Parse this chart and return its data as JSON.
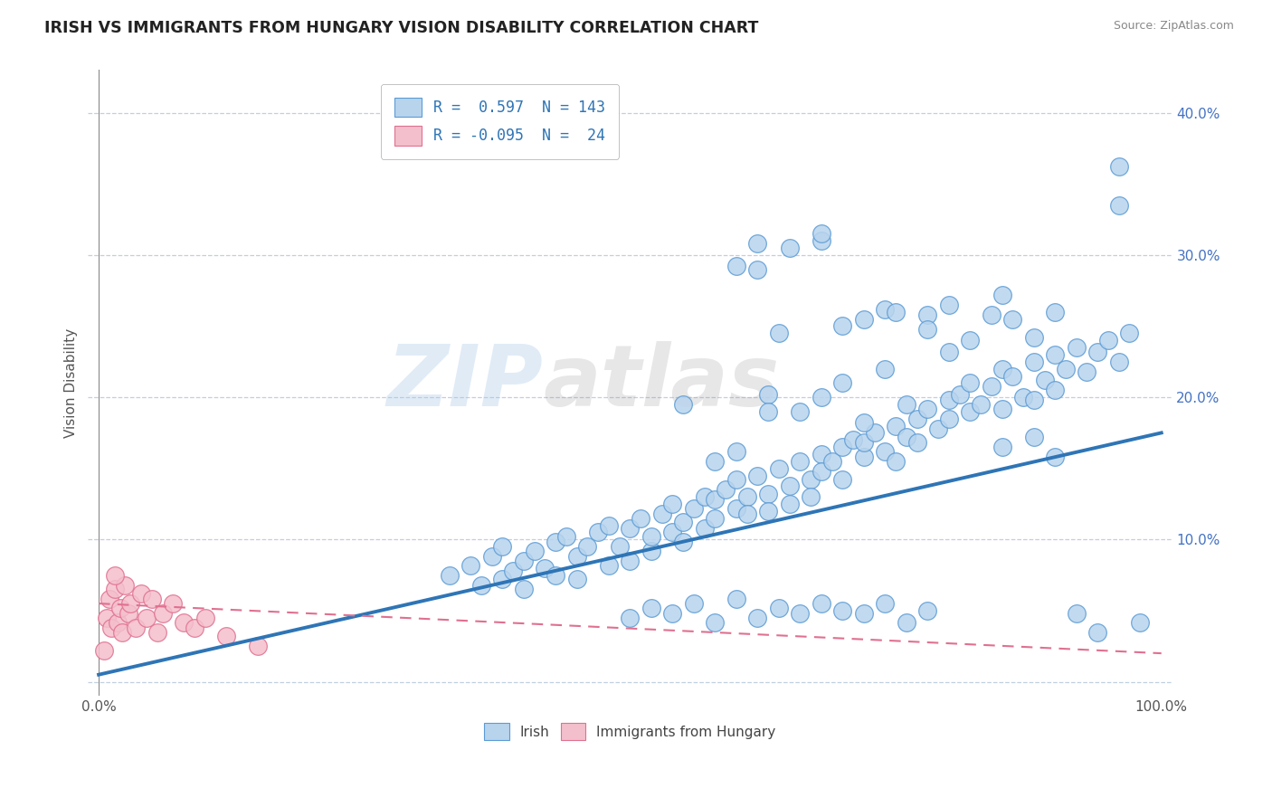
{
  "title": "IRISH VS IMMIGRANTS FROM HUNGARY VISION DISABILITY CORRELATION CHART",
  "source": "Source: ZipAtlas.com",
  "ylabel": "Vision Disability",
  "legend_irish_r": "0.597",
  "legend_irish_n": "143",
  "legend_hungary_r": "-0.095",
  "legend_hungary_n": "24",
  "watermark_zip": "ZIP",
  "watermark_atlas": "atlas",
  "irish_color": "#b8d4ed",
  "irish_edge_color": "#5b9bd5",
  "hungary_color": "#f4bfcc",
  "hungary_edge_color": "#e07090",
  "irish_line_color": "#2e75b6",
  "hungary_line_color": "#e07090",
  "background_color": "#ffffff",
  "grid_color": "#c0cfe0",
  "irish_scatter": [
    [
      33,
      7.5
    ],
    [
      35,
      8.2
    ],
    [
      36,
      6.8
    ],
    [
      37,
      8.8
    ],
    [
      38,
      7.2
    ],
    [
      38,
      9.5
    ],
    [
      39,
      7.8
    ],
    [
      40,
      8.5
    ],
    [
      40,
      6.5
    ],
    [
      41,
      9.2
    ],
    [
      42,
      8.0
    ],
    [
      43,
      9.8
    ],
    [
      43,
      7.5
    ],
    [
      44,
      10.2
    ],
    [
      45,
      8.8
    ],
    [
      45,
      7.2
    ],
    [
      46,
      9.5
    ],
    [
      47,
      10.5
    ],
    [
      48,
      8.2
    ],
    [
      48,
      11.0
    ],
    [
      49,
      9.5
    ],
    [
      50,
      10.8
    ],
    [
      50,
      8.5
    ],
    [
      51,
      11.5
    ],
    [
      52,
      9.2
    ],
    [
      52,
      10.2
    ],
    [
      53,
      11.8
    ],
    [
      54,
      10.5
    ],
    [
      54,
      12.5
    ],
    [
      55,
      11.2
    ],
    [
      55,
      9.8
    ],
    [
      56,
      12.2
    ],
    [
      57,
      10.8
    ],
    [
      57,
      13.0
    ],
    [
      58,
      11.5
    ],
    [
      58,
      12.8
    ],
    [
      59,
      13.5
    ],
    [
      60,
      12.2
    ],
    [
      60,
      14.2
    ],
    [
      61,
      13.0
    ],
    [
      61,
      11.8
    ],
    [
      62,
      14.5
    ],
    [
      63,
      13.2
    ],
    [
      63,
      12.0
    ],
    [
      64,
      15.0
    ],
    [
      65,
      13.8
    ],
    [
      65,
      12.5
    ],
    [
      66,
      15.5
    ],
    [
      67,
      14.2
    ],
    [
      67,
      13.0
    ],
    [
      68,
      16.0
    ],
    [
      68,
      14.8
    ],
    [
      69,
      15.5
    ],
    [
      70,
      16.5
    ],
    [
      70,
      14.2
    ],
    [
      71,
      17.0
    ],
    [
      72,
      15.8
    ],
    [
      72,
      16.8
    ],
    [
      73,
      17.5
    ],
    [
      74,
      16.2
    ],
    [
      75,
      18.0
    ],
    [
      75,
      15.5
    ],
    [
      76,
      17.2
    ],
    [
      77,
      18.5
    ],
    [
      77,
      16.8
    ],
    [
      78,
      19.2
    ],
    [
      79,
      17.8
    ],
    [
      80,
      19.8
    ],
    [
      80,
      18.5
    ],
    [
      81,
      20.2
    ],
    [
      82,
      19.0
    ],
    [
      82,
      21.0
    ],
    [
      83,
      19.5
    ],
    [
      84,
      20.8
    ],
    [
      85,
      19.2
    ],
    [
      85,
      22.0
    ],
    [
      86,
      21.5
    ],
    [
      87,
      20.0
    ],
    [
      88,
      22.5
    ],
    [
      88,
      19.8
    ],
    [
      89,
      21.2
    ],
    [
      90,
      23.0
    ],
    [
      90,
      20.5
    ],
    [
      91,
      22.0
    ],
    [
      92,
      23.5
    ],
    [
      93,
      21.8
    ],
    [
      94,
      23.2
    ],
    [
      95,
      24.0
    ],
    [
      96,
      22.5
    ],
    [
      97,
      24.5
    ],
    [
      62,
      29.0
    ],
    [
      65,
      30.5
    ],
    [
      72,
      25.5
    ],
    [
      74,
      26.2
    ],
    [
      75,
      26.0
    ],
    [
      78,
      25.8
    ],
    [
      80,
      26.5
    ],
    [
      68,
      31.0
    ],
    [
      70,
      25.0
    ],
    [
      64,
      24.5
    ],
    [
      55,
      19.5
    ],
    [
      58,
      15.5
    ],
    [
      60,
      16.2
    ],
    [
      63,
      20.2
    ],
    [
      63,
      19.0
    ],
    [
      66,
      19.0
    ],
    [
      68,
      20.0
    ],
    [
      70,
      21.0
    ],
    [
      72,
      18.2
    ],
    [
      74,
      22.0
    ],
    [
      76,
      19.5
    ],
    [
      78,
      24.8
    ],
    [
      80,
      23.2
    ],
    [
      82,
      24.0
    ],
    [
      84,
      25.8
    ],
    [
      85,
      27.2
    ],
    [
      86,
      25.5
    ],
    [
      88,
      24.2
    ],
    [
      90,
      26.0
    ],
    [
      60,
      29.2
    ],
    [
      62,
      30.8
    ],
    [
      68,
      31.5
    ],
    [
      96,
      36.2
    ],
    [
      96,
      33.5
    ],
    [
      92,
      4.8
    ],
    [
      94,
      3.5
    ],
    [
      98,
      4.2
    ],
    [
      85,
      16.5
    ],
    [
      88,
      17.2
    ],
    [
      90,
      15.8
    ],
    [
      50,
      4.5
    ],
    [
      52,
      5.2
    ],
    [
      54,
      4.8
    ],
    [
      56,
      5.5
    ],
    [
      58,
      4.2
    ],
    [
      60,
      5.8
    ],
    [
      62,
      4.5
    ],
    [
      64,
      5.2
    ],
    [
      66,
      4.8
    ],
    [
      68,
      5.5
    ],
    [
      70,
      5.0
    ],
    [
      72,
      4.8
    ],
    [
      74,
      5.5
    ],
    [
      76,
      4.2
    ],
    [
      78,
      5.0
    ]
  ],
  "hungary_scatter": [
    [
      0.5,
      2.2
    ],
    [
      0.8,
      4.5
    ],
    [
      1.0,
      5.8
    ],
    [
      1.2,
      3.8
    ],
    [
      1.5,
      6.5
    ],
    [
      1.8,
      4.2
    ],
    [
      2.0,
      5.2
    ],
    [
      2.2,
      3.5
    ],
    [
      2.5,
      6.8
    ],
    [
      2.8,
      4.8
    ],
    [
      3.0,
      5.5
    ],
    [
      3.5,
      3.8
    ],
    [
      4.0,
      6.2
    ],
    [
      4.5,
      4.5
    ],
    [
      5.0,
      5.8
    ],
    [
      5.5,
      3.5
    ],
    [
      6.0,
      4.8
    ],
    [
      7.0,
      5.5
    ],
    [
      8.0,
      4.2
    ],
    [
      9.0,
      3.8
    ],
    [
      10.0,
      4.5
    ],
    [
      12.0,
      3.2
    ],
    [
      15.0,
      2.5
    ],
    [
      1.5,
      7.5
    ]
  ],
  "irish_reg_x0": 0,
  "irish_reg_y0": 0.5,
  "irish_reg_x1": 100,
  "irish_reg_y1": 17.5,
  "hungary_reg_x0": 0,
  "hungary_reg_y0": 5.5,
  "hungary_reg_x1": 100,
  "hungary_reg_y1": 2.0,
  "xlim": [
    -1,
    101
  ],
  "ylim": [
    -1,
    43
  ],
  "ytick_vals": [
    10,
    20,
    30,
    40
  ],
  "ytick_labels": [
    "10.0%",
    "20.0%",
    "30.0%",
    "40.0%"
  ]
}
